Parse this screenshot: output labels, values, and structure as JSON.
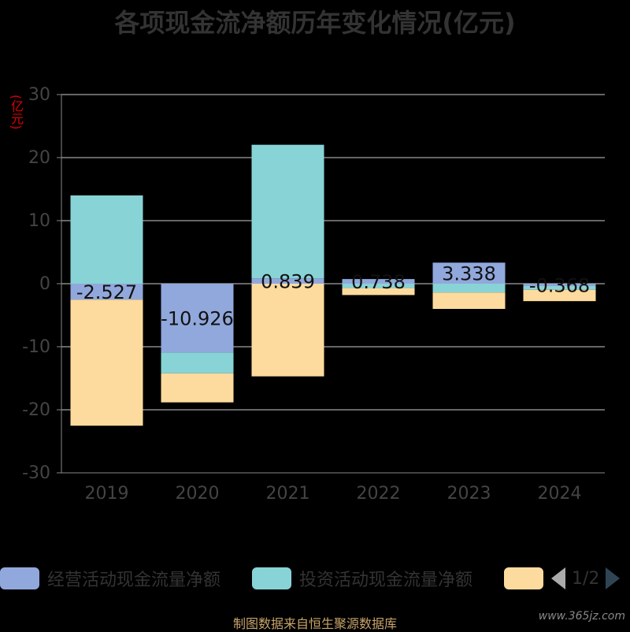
{
  "title": "各项现金流净额历年变化情况(亿元)",
  "unit_label": "(亿元)",
  "footer": "制图数据来自恒生聚源数据库",
  "watermark": "www.365jz.com",
  "pager": {
    "text": "1/2"
  },
  "colors": {
    "operating": "#91a8dc",
    "investing": "#88d3d6",
    "financing": "#fddb9e"
  },
  "legend": [
    {
      "label": "经营活动现金流量净额",
      "color": "#91a8dc"
    },
    {
      "label": "投资活动现金流量净额",
      "color": "#88d3d6"
    },
    {
      "label": "",
      "color": "#fddb9e"
    }
  ],
  "chart_data": {
    "type": "bar",
    "stacked": true,
    "categories": [
      "2019",
      "2020",
      "2021",
      "2022",
      "2023",
      "2024"
    ],
    "ylim": [
      -30,
      30
    ],
    "yticks": [
      30,
      20,
      10,
      0,
      -10,
      -20,
      -30
    ],
    "grid": true,
    "series": [
      {
        "name": "经营活动现金流量净额",
        "values": [
          -2.527,
          -10.926,
          0.839,
          0.738,
          3.338,
          -0.368
        ],
        "labels": [
          "-2.527",
          "-10.926",
          "0.839",
          "0.738",
          "3.338",
          "-0.368"
        ]
      },
      {
        "name": "投资活动现金流量净额",
        "values": [
          14,
          -3.3,
          21.2,
          -0.7,
          -1.4,
          -0.6
        ]
      },
      {
        "values": [
          -20,
          -4.6,
          -14.7,
          -1.1,
          -2.6,
          -1.8
        ]
      }
    ]
  }
}
